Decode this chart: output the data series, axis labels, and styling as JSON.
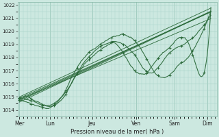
{
  "xlabel": "Pression niveau de la mer( hPa )",
  "ylim": [
    1013.5,
    1022.2
  ],
  "yticks": [
    1014,
    1015,
    1016,
    1017,
    1018,
    1019,
    1020,
    1021,
    1022
  ],
  "xtick_labels": [
    "Mer",
    "Lun",
    "Jeu",
    "Ven",
    "Sam",
    "Dim"
  ],
  "xtick_positions": [
    0.0,
    0.8,
    1.9,
    3.05,
    4.05,
    4.9
  ],
  "background_color": "#cce8e0",
  "grid_color": "#aad4c8",
  "line_color": "#2d6b3c",
  "figsize": [
    3.2,
    2.0
  ],
  "dpi": 100
}
